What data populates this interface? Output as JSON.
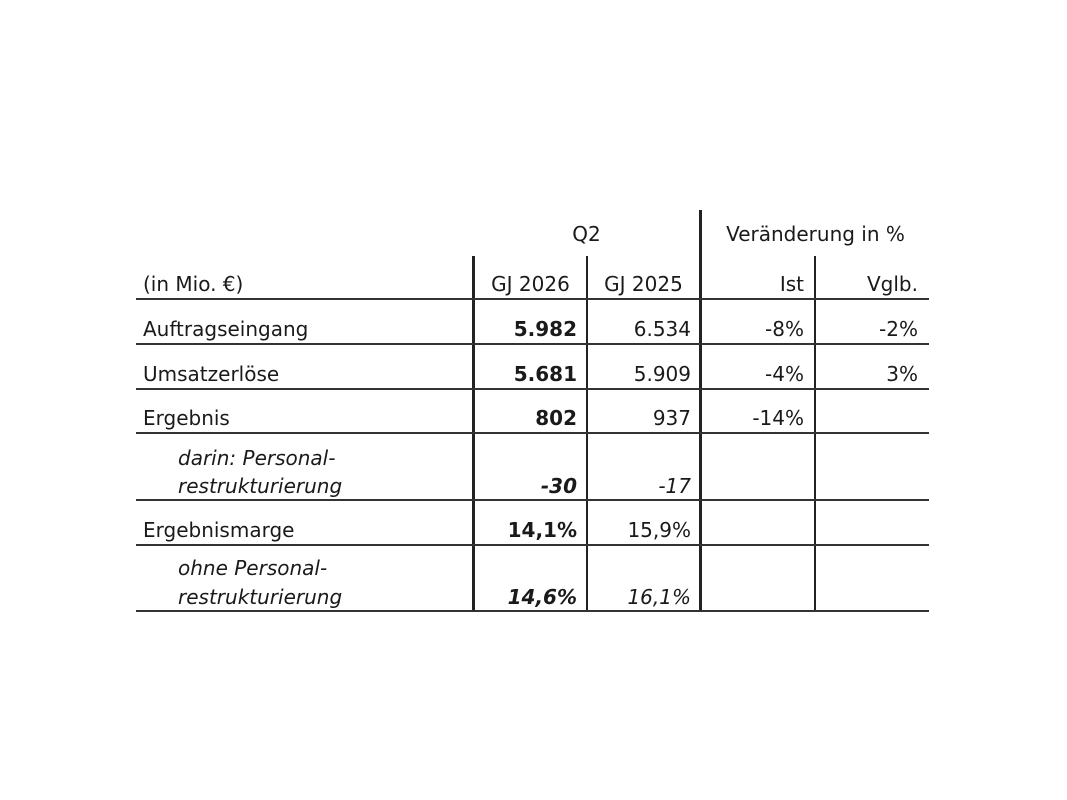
{
  "header": {
    "period_group": "Q2",
    "change_group": "Veränderung in %",
    "unit_label": "(in Mio. €)",
    "col_current": "GJ 2026",
    "col_prior": "GJ 2025",
    "col_actual": "Ist",
    "col_comparable": "Vglb."
  },
  "rows": [
    {
      "label": "Auftragseingang",
      "current": "5.982",
      "prior": "6.534",
      "actual": "-8%",
      "comparable": "-2%"
    },
    {
      "label": "Umsatzerlöse",
      "current": "5.681",
      "prior": "5.909",
      "actual": "-4%",
      "comparable": "3%"
    },
    {
      "label": "Ergebnis",
      "current": "802",
      "prior": "937",
      "actual": "-14%",
      "comparable": ""
    },
    {
      "label_line1": "darin: Personal-",
      "label_line2": "restrukturierung",
      "current": "-30",
      "prior": "-17",
      "actual": "",
      "comparable": ""
    },
    {
      "label": "Ergebnismarge",
      "current": "14,1%",
      "prior": "15,9%",
      "actual": "",
      "comparable": ""
    },
    {
      "label_line1": "ohne Personal-",
      "label_line2": "restrukturierung",
      "current": "14,6%",
      "prior": "16,1%",
      "actual": "",
      "comparable": ""
    }
  ]
}
